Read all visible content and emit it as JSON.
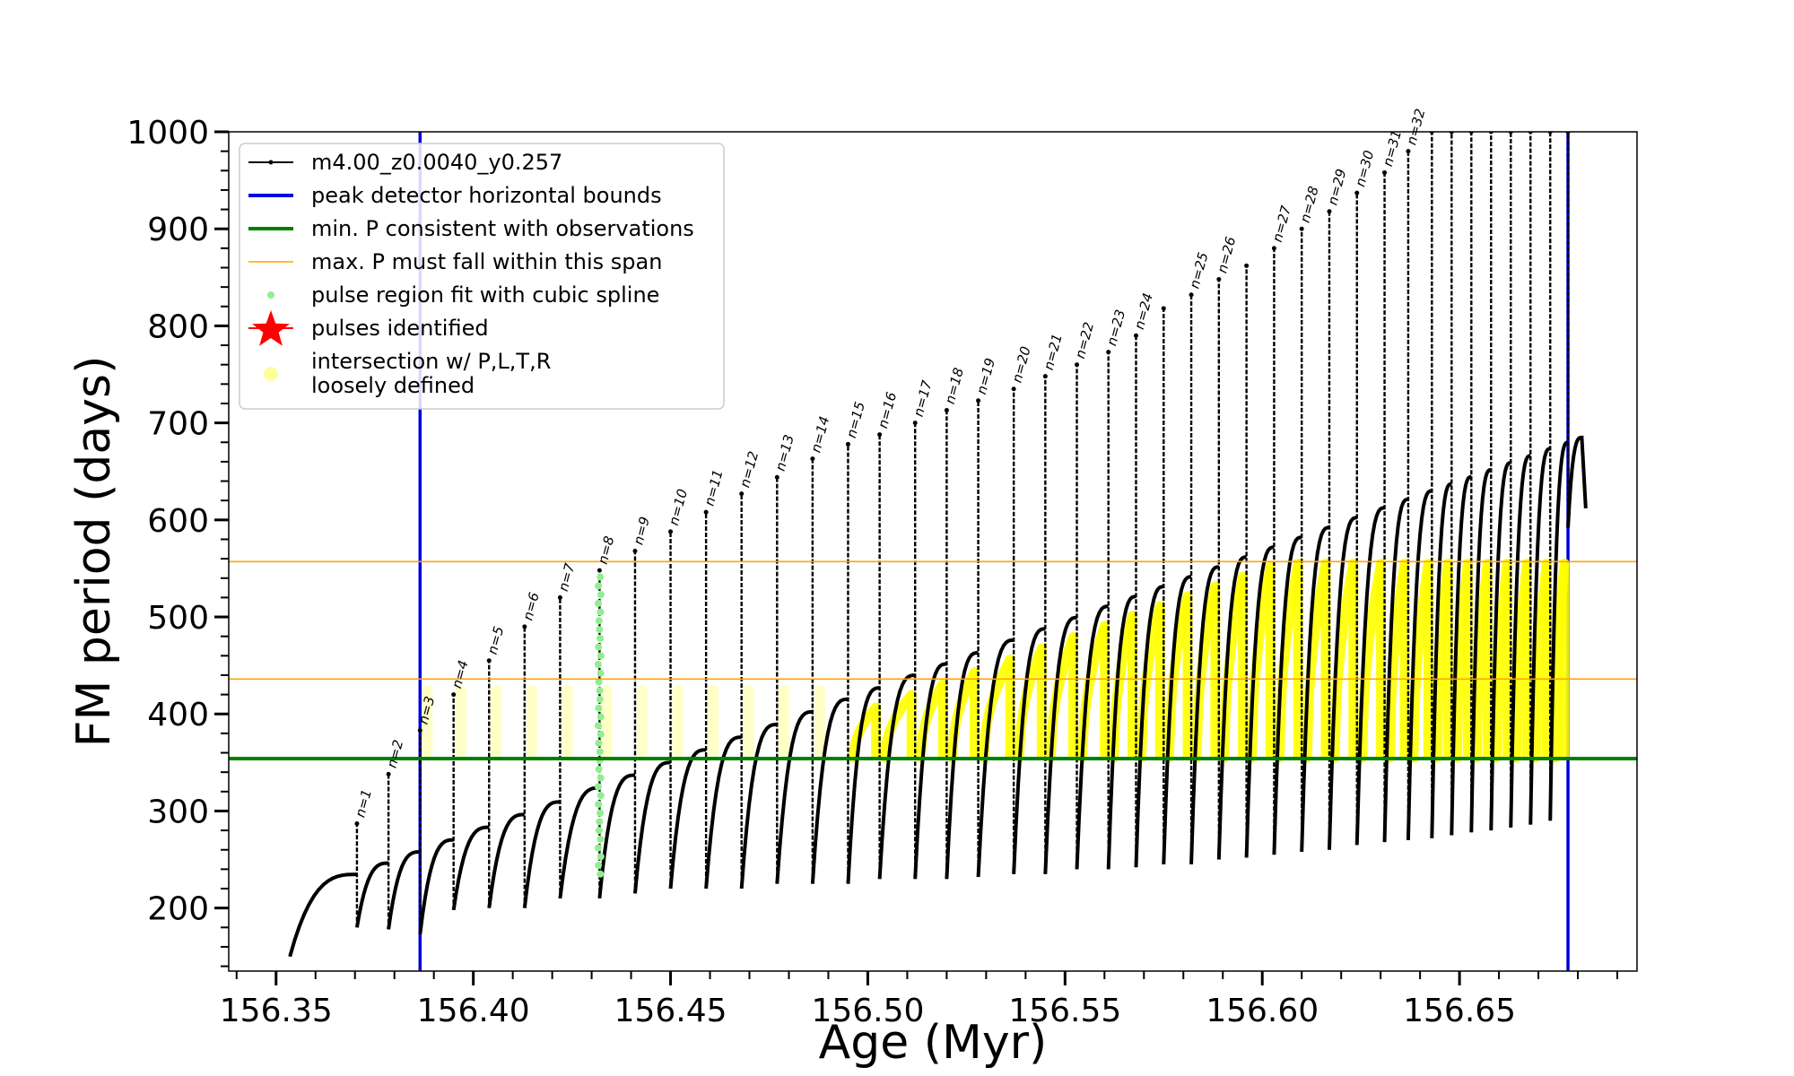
{
  "chart_data": {
    "type": "line",
    "title": "",
    "xlabel": "Age (Myr)",
    "ylabel": "FM period (days)",
    "xlim": [
      156.338,
      156.695
    ],
    "ylim": [
      135,
      1000
    ],
    "xticks": [
      "156.35",
      "156.40",
      "156.45",
      "156.50",
      "156.55",
      "156.60",
      "156.65"
    ],
    "yticks": [
      "200",
      "300",
      "400",
      "500",
      "600",
      "700",
      "800",
      "900",
      "1000"
    ],
    "grid": false,
    "legend_placement": "top-left",
    "legend": [
      {
        "label": "m4.00_z0.0040_y0.257",
        "color": "#000000",
        "marker": "line-dot"
      },
      {
        "label": "peak detector horizontal bounds",
        "color": "#0000dd",
        "marker": "line"
      },
      {
        "label": "min. P consistent with observations",
        "color": "#008000",
        "marker": "line"
      },
      {
        "label": "max. P must fall within this span",
        "color": "#ffa500",
        "marker": "thin-line"
      },
      {
        "label": "pulse region fit with cubic spline",
        "color": "#90ee90",
        "marker": "dot"
      },
      {
        "label": "pulses identified",
        "color": "#ff0000",
        "marker": "star"
      },
      {
        "label": "intersection w/ P,L,T,R\nloosely defined",
        "color": "#ffff99",
        "marker": "circle"
      }
    ],
    "vlines": [
      {
        "name": "peak detector horizontal bounds",
        "x": 156.3865,
        "color": "#0000dd"
      },
      {
        "name": "peak detector horizontal bounds",
        "x": 156.6775,
        "color": "#0000dd"
      }
    ],
    "hlines": [
      {
        "name": "min. P consistent with observations",
        "y": 354,
        "color": "#008000"
      },
      {
        "name": "max. P must fall within this span",
        "y": 436,
        "color": "#ffa500"
      },
      {
        "name": "max. P must fall within this span",
        "y": 557,
        "color": "#ffa500"
      }
    ],
    "pulses": [
      {
        "n": "n=1",
        "age": 156.3705,
        "peak": 287,
        "base": 180
      },
      {
        "n": "n=2",
        "age": 156.3785,
        "peak": 338,
        "base": 178
      },
      {
        "n": "n=3",
        "age": 156.3865,
        "peak": 383,
        "base": 173
      },
      {
        "n": "n=4",
        "age": 156.395,
        "peak": 420,
        "base": 198
      },
      {
        "n": "n=5",
        "age": 156.404,
        "peak": 455,
        "base": 200
      },
      {
        "n": "n=6",
        "age": 156.413,
        "peak": 490,
        "base": 200
      },
      {
        "n": "n=7",
        "age": 156.422,
        "peak": 520,
        "base": 210
      },
      {
        "n": "n=8",
        "age": 156.432,
        "peak": 548,
        "base": 210
      },
      {
        "n": "n=9",
        "age": 156.441,
        "peak": 568,
        "base": 215
      },
      {
        "n": "n=10",
        "age": 156.45,
        "peak": 588,
        "base": 220
      },
      {
        "n": "n=11",
        "age": 156.459,
        "peak": 608,
        "base": 220
      },
      {
        "n": "n=12",
        "age": 156.468,
        "peak": 627,
        "base": 220
      },
      {
        "n": "n=13",
        "age": 156.477,
        "peak": 644,
        "base": 225
      },
      {
        "n": "n=14",
        "age": 156.486,
        "peak": 663,
        "base": 225
      },
      {
        "n": "n=15",
        "age": 156.495,
        "peak": 678,
        "base": 225
      },
      {
        "n": "n=16",
        "age": 156.503,
        "peak": 688,
        "base": 230
      },
      {
        "n": "n=17",
        "age": 156.512,
        "peak": 700,
        "base": 230
      },
      {
        "n": "n=18",
        "age": 156.52,
        "peak": 713,
        "base": 230
      },
      {
        "n": "n=19",
        "age": 156.528,
        "peak": 723,
        "base": 232
      },
      {
        "n": "n=20",
        "age": 156.537,
        "peak": 735,
        "base": 235
      },
      {
        "n": "n=21",
        "age": 156.545,
        "peak": 748,
        "base": 235
      },
      {
        "n": "n=22",
        "age": 156.553,
        "peak": 760,
        "base": 240
      },
      {
        "n": "n=23",
        "age": 156.561,
        "peak": 773,
        "base": 240
      },
      {
        "n": "n=24",
        "age": 156.568,
        "peak": 790,
        "base": 242
      },
      {
        "n": "",
        "age": 156.575,
        "peak": 818,
        "base": 245
      },
      {
        "n": "n=25",
        "age": 156.582,
        "peak": 832,
        "base": 245
      },
      {
        "n": "n=26",
        "age": 156.589,
        "peak": 848,
        "base": 250
      },
      {
        "n": "",
        "age": 156.596,
        "peak": 862,
        "base": 252
      },
      {
        "n": "n=27",
        "age": 156.603,
        "peak": 880,
        "base": 255
      },
      {
        "n": "n=28",
        "age": 156.61,
        "peak": 900,
        "base": 258
      },
      {
        "n": "n=29",
        "age": 156.617,
        "peak": 918,
        "base": 260
      },
      {
        "n": "n=30",
        "age": 156.624,
        "peak": 937,
        "base": 265
      },
      {
        "n": "n=31",
        "age": 156.631,
        "peak": 958,
        "base": 268
      },
      {
        "n": "n=32",
        "age": 156.637,
        "peak": 980,
        "base": 270
      },
      {
        "n": "",
        "age": 156.643,
        "peak": 1000,
        "base": 272
      },
      {
        "n": "",
        "age": 156.648,
        "peak": 1000,
        "base": 275
      },
      {
        "n": "",
        "age": 156.653,
        "peak": 1000,
        "base": 278
      },
      {
        "n": "",
        "age": 156.658,
        "peak": 1000,
        "base": 280
      },
      {
        "n": "",
        "age": 156.663,
        "peak": 1000,
        "base": 283
      },
      {
        "n": "",
        "age": 156.668,
        "peak": 1000,
        "base": 286
      },
      {
        "n": "",
        "age": 156.673,
        "peak": 1000,
        "base": 290
      },
      {
        "n": "",
        "age": 156.6775,
        "peak": 1000,
        "base": 592
      }
    ],
    "baseline_end": {
      "age": 156.682,
      "value": 612
    },
    "baseline_max": {
      "age": 156.681,
      "value": 685
    },
    "start": {
      "age": 156.3535,
      "value": 150
    },
    "spline_pulse": {
      "age": 156.432,
      "ymin": 235,
      "ymax": 545
    },
    "yellow_start_index": 14,
    "yellow_faint_start_index": 2
  }
}
